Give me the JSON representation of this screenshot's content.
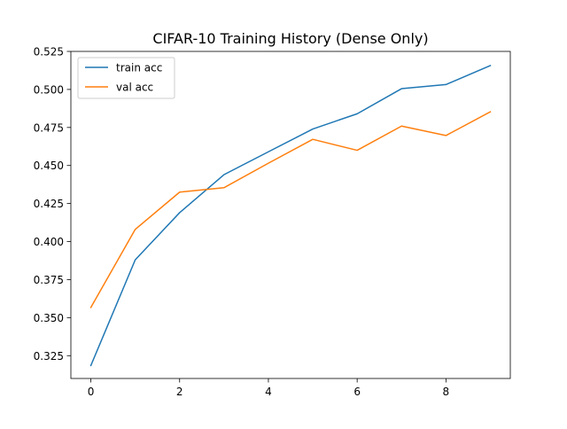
{
  "chart_data": {
    "type": "line",
    "title": "CIFAR-10 Training History (Dense Only)",
    "xlabel": "",
    "ylabel": "",
    "x": [
      0,
      1,
      2,
      3,
      4,
      5,
      6,
      7,
      8,
      9
    ],
    "series": [
      {
        "name": "train acc",
        "color": "#1f77b4",
        "values": [
          0.3185,
          0.388,
          0.419,
          0.444,
          0.459,
          0.474,
          0.484,
          0.5005,
          0.5032,
          0.5157
        ]
      },
      {
        "name": "val acc",
        "color": "#ff7f0e",
        "values": [
          0.3567,
          0.408,
          0.4325,
          0.4354,
          0.4515,
          0.4672,
          0.46,
          0.4759,
          0.4697,
          0.4853
        ]
      }
    ],
    "xlim": [
      -0.45,
      9.45
    ],
    "ylim": [
      0.31,
      0.525
    ],
    "x_ticks": [
      0,
      2,
      4,
      6,
      8
    ],
    "x_tick_labels": [
      "0",
      "2",
      "4",
      "6",
      "8"
    ],
    "y_ticks": [
      0.325,
      0.35,
      0.375,
      0.4,
      0.425,
      0.45,
      0.475,
      0.5,
      0.525
    ],
    "y_tick_labels": [
      "0.325",
      "0.350",
      "0.375",
      "0.400",
      "0.425",
      "0.450",
      "0.475",
      "0.500",
      "0.525"
    ],
    "grid": false,
    "legend_position": "top-left"
  }
}
